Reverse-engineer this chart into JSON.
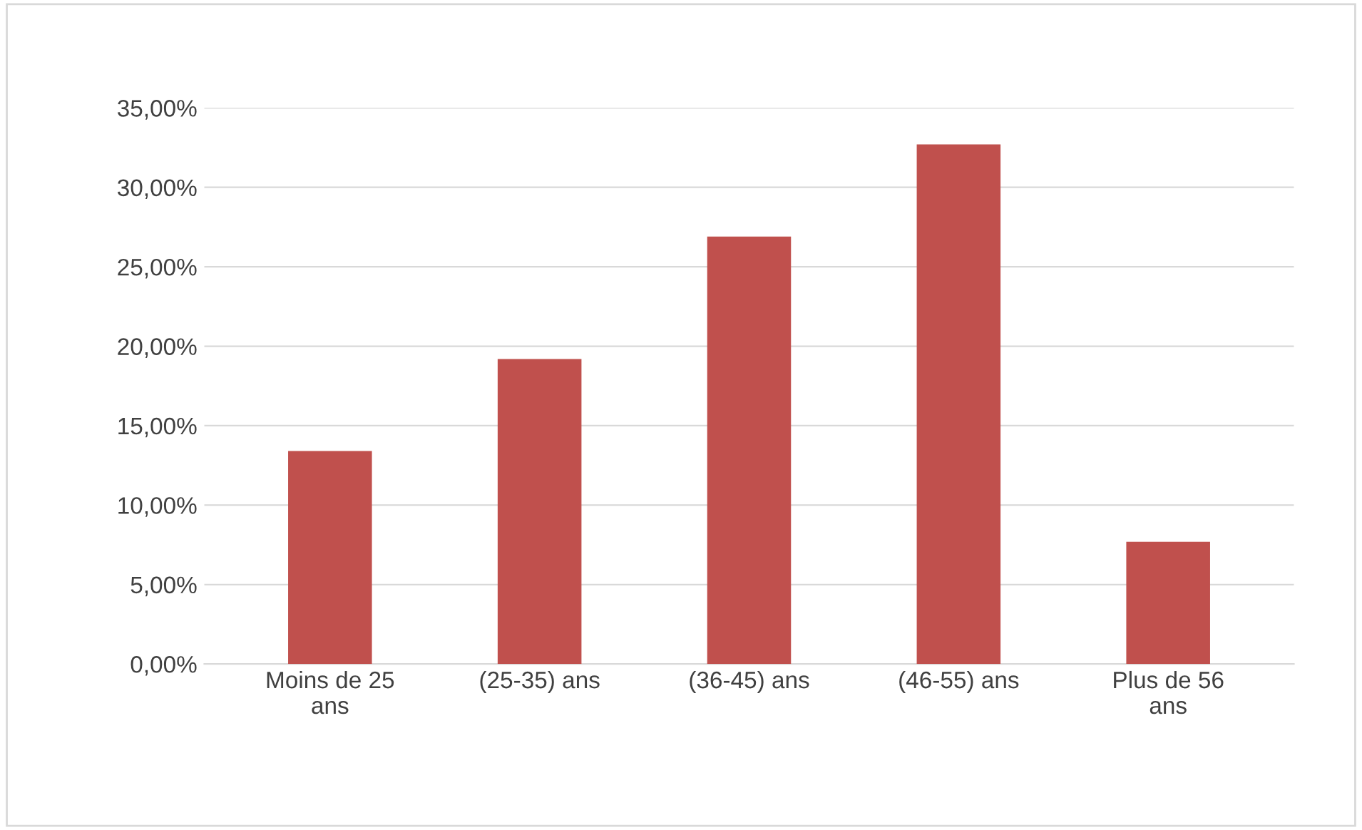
{
  "chart_data": {
    "type": "bar",
    "categories": [
      "Moins de 25\nans",
      "(25-35) ans",
      "(36-45) ans",
      "(46-55) ans",
      "Plus de 56\nans"
    ],
    "values": [
      13.4,
      19.2,
      26.9,
      32.7,
      7.7
    ],
    "color": "#c0504d",
    "ylim": [
      0,
      35
    ],
    "yticks": [
      {
        "value": 0,
        "label": "0,00%"
      },
      {
        "value": 5,
        "label": "5,00%"
      },
      {
        "value": 10,
        "label": "10,00%"
      },
      {
        "value": 15,
        "label": "15,00%"
      },
      {
        "value": 20,
        "label": "20,00%"
      },
      {
        "value": 25,
        "label": "25,00%"
      },
      {
        "value": 30,
        "label": "30,00%"
      },
      {
        "value": 35,
        "label": "35,00%"
      }
    ],
    "grid": "y"
  }
}
